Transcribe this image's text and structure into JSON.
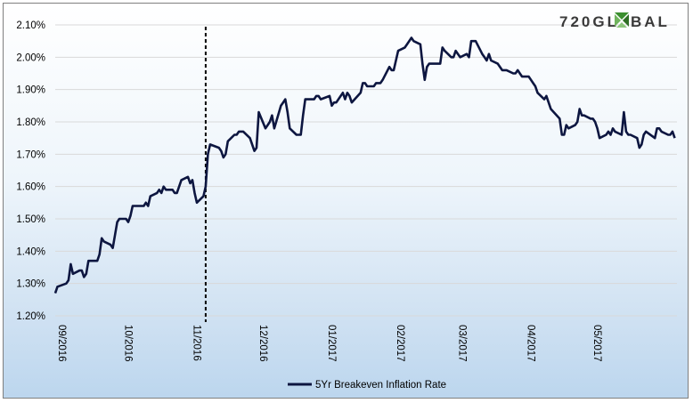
{
  "brand": {
    "logo_text_left": "720GL",
    "logo_text_right": "BAL",
    "logo_color": "#3a3a3a",
    "logo_accent": "#3b8f2f"
  },
  "chart_data": {
    "type": "line",
    "title": "",
    "xlabel": "",
    "ylabel": "",
    "ylim": [
      1.2,
      2.1
    ],
    "yticks": [
      "1.20%",
      "1.30%",
      "1.40%",
      "1.50%",
      "1.60%",
      "1.70%",
      "1.80%",
      "1.90%",
      "2.00%",
      "2.10%"
    ],
    "xticks": [
      "09/2016",
      "10/2016",
      "11/2016",
      "12/2016",
      "01/2017",
      "02/2017",
      "03/2017",
      "04/2017",
      "05/2017"
    ],
    "xlim": [
      "2016-09-01",
      "2017-06-09"
    ],
    "grid": true,
    "legend_position": "bottom",
    "line_color": "#0d1640",
    "marker_line": {
      "date": "2016-11-08",
      "style": "dashed",
      "color": "#000000"
    },
    "series": [
      {
        "name": "5Yr Breakeven Inflation Rate",
        "x": [
          "2016-09-01",
          "2016-09-02",
          "2016-09-06",
          "2016-09-07",
          "2016-09-08",
          "2016-09-09",
          "2016-09-12",
          "2016-09-13",
          "2016-09-14",
          "2016-09-15",
          "2016-09-16",
          "2016-09-19",
          "2016-09-20",
          "2016-09-21",
          "2016-09-22",
          "2016-09-23",
          "2016-09-26",
          "2016-09-27",
          "2016-09-28",
          "2016-09-29",
          "2016-09-30",
          "2016-10-03",
          "2016-10-04",
          "2016-10-05",
          "2016-10-06",
          "2016-10-07",
          "2016-10-11",
          "2016-10-12",
          "2016-10-13",
          "2016-10-14",
          "2016-10-17",
          "2016-10-18",
          "2016-10-19",
          "2016-10-20",
          "2016-10-21",
          "2016-10-24",
          "2016-10-25",
          "2016-10-26",
          "2016-10-27",
          "2016-10-28",
          "2016-10-31",
          "2016-11-01",
          "2016-11-02",
          "2016-11-03",
          "2016-11-04",
          "2016-11-07",
          "2016-11-08",
          "2016-11-09",
          "2016-11-10",
          "2016-11-14",
          "2016-11-15",
          "2016-11-16",
          "2016-11-17",
          "2016-11-18",
          "2016-11-21",
          "2016-11-22",
          "2016-11-23",
          "2016-11-25",
          "2016-11-28",
          "2016-11-29",
          "2016-11-30",
          "2016-12-01",
          "2016-12-02",
          "2016-12-05",
          "2016-12-06",
          "2016-12-07",
          "2016-12-08",
          "2016-12-09",
          "2016-12-12",
          "2016-12-13",
          "2016-12-14",
          "2016-12-15",
          "2016-12-16",
          "2016-12-19",
          "2016-12-20",
          "2016-12-21",
          "2016-12-22",
          "2016-12-23",
          "2016-12-27",
          "2016-12-28",
          "2016-12-29",
          "2016-12-30",
          "2017-01-03",
          "2017-01-04",
          "2017-01-05",
          "2017-01-06",
          "2017-01-09",
          "2017-01-10",
          "2017-01-11",
          "2017-01-12",
          "2017-01-13",
          "2017-01-17",
          "2017-01-18",
          "2017-01-19",
          "2017-01-20",
          "2017-01-23",
          "2017-01-24",
          "2017-01-25",
          "2017-01-26",
          "2017-01-27",
          "2017-01-30",
          "2017-01-31",
          "2017-02-01",
          "2017-02-02",
          "2017-02-03",
          "2017-02-06",
          "2017-02-07",
          "2017-02-08",
          "2017-02-09",
          "2017-02-10",
          "2017-02-13",
          "2017-02-14",
          "2017-02-15",
          "2017-02-16",
          "2017-02-17",
          "2017-02-21",
          "2017-02-22",
          "2017-02-23",
          "2017-02-24",
          "2017-02-27",
          "2017-02-28",
          "2017-03-01",
          "2017-03-02",
          "2017-03-03",
          "2017-03-06",
          "2017-03-07",
          "2017-03-08",
          "2017-03-09",
          "2017-03-10",
          "2017-03-13",
          "2017-03-14",
          "2017-03-15",
          "2017-03-16",
          "2017-03-17",
          "2017-03-20",
          "2017-03-21",
          "2017-03-22",
          "2017-03-23",
          "2017-03-24",
          "2017-03-27",
          "2017-03-28",
          "2017-03-29",
          "2017-03-30",
          "2017-03-31",
          "2017-04-03",
          "2017-04-04",
          "2017-04-05",
          "2017-04-06",
          "2017-04-07",
          "2017-04-10",
          "2017-04-11",
          "2017-04-12",
          "2017-04-13",
          "2017-04-17",
          "2017-04-18",
          "2017-04-19",
          "2017-04-20",
          "2017-04-21",
          "2017-04-24",
          "2017-04-25",
          "2017-04-26",
          "2017-04-27",
          "2017-04-28",
          "2017-05-01",
          "2017-05-02",
          "2017-05-03",
          "2017-05-04",
          "2017-05-05",
          "2017-05-08",
          "2017-05-09",
          "2017-05-10",
          "2017-05-11",
          "2017-05-12",
          "2017-05-15",
          "2017-05-16",
          "2017-05-17",
          "2017-05-18",
          "2017-05-19",
          "2017-05-22",
          "2017-05-23",
          "2017-05-24",
          "2017-05-25",
          "2017-05-26",
          "2017-05-30",
          "2017-05-31",
          "2017-06-01",
          "2017-06-02",
          "2017-06-05",
          "2017-06-06",
          "2017-06-07",
          "2017-06-08"
        ],
        "values": [
          1.27,
          1.29,
          1.3,
          1.31,
          1.36,
          1.33,
          1.34,
          1.34,
          1.32,
          1.33,
          1.37,
          1.37,
          1.37,
          1.39,
          1.44,
          1.43,
          1.42,
          1.41,
          1.45,
          1.49,
          1.5,
          1.5,
          1.49,
          1.51,
          1.54,
          1.54,
          1.54,
          1.55,
          1.54,
          1.57,
          1.58,
          1.59,
          1.58,
          1.6,
          1.59,
          1.59,
          1.58,
          1.58,
          1.6,
          1.62,
          1.63,
          1.61,
          1.62,
          1.58,
          1.55,
          1.57,
          1.6,
          1.7,
          1.73,
          1.72,
          1.71,
          1.69,
          1.7,
          1.74,
          1.76,
          1.76,
          1.77,
          1.77,
          1.75,
          1.73,
          1.71,
          1.72,
          1.83,
          1.78,
          1.79,
          1.8,
          1.82,
          1.78,
          1.85,
          1.86,
          1.87,
          1.83,
          1.78,
          1.76,
          1.76,
          1.76,
          1.82,
          1.87,
          1.87,
          1.88,
          1.88,
          1.87,
          1.88,
          1.85,
          1.86,
          1.86,
          1.89,
          1.87,
          1.89,
          1.88,
          1.86,
          1.89,
          1.92,
          1.92,
          1.91,
          1.91,
          1.92,
          1.92,
          1.92,
          1.93,
          1.97,
          1.96,
          1.96,
          1.99,
          2.02,
          2.03,
          2.04,
          2.05,
          2.06,
          2.05,
          2.04,
          1.98,
          1.93,
          1.97,
          1.98,
          1.98,
          1.98,
          2.03,
          2.02,
          2.0,
          2.0,
          2.02,
          2.01,
          2.0,
          2.01,
          2.0,
          2.05,
          2.05,
          2.05,
          2.01,
          2.0,
          1.99,
          2.01,
          1.99,
          1.98,
          1.97,
          1.96,
          1.96,
          1.96,
          1.95,
          1.95,
          1.96,
          1.95,
          1.94,
          1.94,
          1.93,
          1.92,
          1.91,
          1.89,
          1.87,
          1.88,
          1.86,
          1.84,
          1.81,
          1.76,
          1.76,
          1.79,
          1.78,
          1.79,
          1.8,
          1.84,
          1.82,
          1.82,
          1.81,
          1.81,
          1.8,
          1.78,
          1.75,
          1.76,
          1.77,
          1.76,
          1.78,
          1.77,
          1.76,
          1.83,
          1.77,
          1.76,
          1.76,
          1.75,
          1.72,
          1.73,
          1.76,
          1.77,
          1.75,
          1.78,
          1.78,
          1.77,
          1.76,
          1.76,
          1.77,
          1.75
        ]
      }
    ]
  }
}
